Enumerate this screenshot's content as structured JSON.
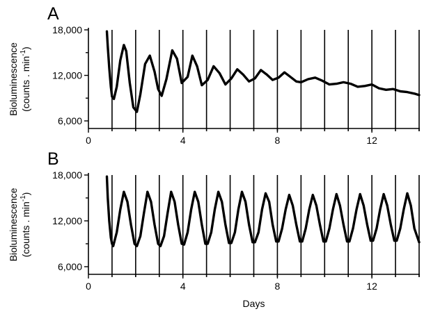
{
  "chart_data": [
    {
      "type": "line",
      "panel_label": "A",
      "ylabel": "Bioluminescence",
      "ylabel_units": "(counts . min",
      "ylabel_units_sup": "-1",
      "ylabel_units_close": ")",
      "xlabel": "",
      "xlim": [
        0,
        14
      ],
      "ylim": [
        5000,
        18000
      ],
      "x_ticks": [
        0,
        4,
        8,
        12
      ],
      "x_tick_labels": [
        "0",
        "4",
        "8",
        "12"
      ],
      "x_minor_ticks": [
        2,
        6,
        10,
        14
      ],
      "y_ticks": [
        6000,
        12000,
        18000
      ],
      "y_tick_labels": [
        "6,000",
        "12,000",
        "18,000"
      ],
      "y_minor_ticks": [
        9000,
        15000
      ],
      "day_markers": [
        1,
        2,
        3,
        4,
        5,
        6,
        7,
        8,
        9,
        10,
        11,
        12,
        13,
        14
      ],
      "series": [
        {
          "x": [
            0.78,
            0.82,
            0.88,
            0.95,
            1.0,
            1.08,
            1.2,
            1.35,
            1.5,
            1.6,
            1.75,
            1.9,
            2.05,
            2.2,
            2.4,
            2.6,
            2.8,
            2.95,
            3.1,
            3.3,
            3.55,
            3.75,
            3.95,
            4.2,
            4.4,
            4.6,
            4.8,
            5.05,
            5.3,
            5.55,
            5.8,
            6.05,
            6.3,
            6.55,
            6.8,
            7.05,
            7.3,
            7.55,
            7.8,
            8.05,
            8.3,
            8.55,
            8.8,
            9.0,
            9.3,
            9.6,
            9.9,
            10.2,
            10.5,
            10.8,
            11.1,
            11.4,
            11.7,
            12.0,
            12.3,
            12.6,
            12.9,
            13.2,
            13.5,
            13.8,
            14.0
          ],
          "y": [
            17800,
            15800,
            13000,
            10500,
            9200,
            8900,
            10500,
            14000,
            16000,
            15200,
            11000,
            7800,
            7200,
            9500,
            13500,
            14600,
            12500,
            10200,
            9300,
            11500,
            15300,
            14200,
            11000,
            11800,
            14600,
            13200,
            10700,
            11400,
            13200,
            12300,
            10800,
            11600,
            12800,
            12100,
            11200,
            11600,
            12700,
            12100,
            11400,
            11700,
            12400,
            11800,
            11200,
            11100,
            11500,
            11700,
            11300,
            10800,
            10900,
            11100,
            10900,
            10500,
            10600,
            10800,
            10300,
            10100,
            10200,
            9900,
            9800,
            9600,
            9400
          ]
        }
      ]
    },
    {
      "type": "line",
      "panel_label": "B",
      "ylabel": "Bioluminescence",
      "ylabel_units": "(counts . min",
      "ylabel_units_sup": "-1",
      "ylabel_units_close": ")",
      "xlabel": "Days",
      "xlim": [
        0,
        14
      ],
      "ylim": [
        5000,
        18000
      ],
      "x_ticks": [
        0,
        4,
        8,
        12
      ],
      "x_tick_labels": [
        "0",
        "4",
        "8",
        "12"
      ],
      "x_minor_ticks": [
        2,
        6,
        10,
        14
      ],
      "y_ticks": [
        6000,
        12000,
        18000
      ],
      "y_tick_labels": [
        "6,000",
        "12,000",
        "18,000"
      ],
      "y_minor_ticks": [
        9000,
        15000
      ],
      "day_markers": [
        1,
        2,
        3,
        4,
        5,
        6,
        7,
        8,
        9,
        10,
        11,
        12,
        13,
        14
      ],
      "series": [
        {
          "x": [
            0.78,
            0.82,
            0.88,
            0.95,
            1.0,
            1.05,
            1.2,
            1.35,
            1.5,
            1.65,
            1.8,
            1.95,
            2.05,
            2.2,
            2.35,
            2.5,
            2.65,
            2.8,
            2.95,
            3.05,
            3.2,
            3.35,
            3.5,
            3.65,
            3.8,
            3.95,
            4.05,
            4.2,
            4.35,
            4.5,
            4.65,
            4.8,
            4.95,
            5.05,
            5.2,
            5.35,
            5.5,
            5.65,
            5.8,
            5.95,
            6.05,
            6.2,
            6.35,
            6.5,
            6.65,
            6.8,
            6.95,
            7.05,
            7.2,
            7.35,
            7.5,
            7.65,
            7.8,
            7.95,
            8.05,
            8.2,
            8.35,
            8.5,
            8.65,
            8.8,
            8.95,
            9.05,
            9.2,
            9.35,
            9.5,
            9.65,
            9.8,
            9.95,
            10.05,
            10.2,
            10.35,
            10.5,
            10.65,
            10.8,
            10.95,
            11.05,
            11.2,
            11.35,
            11.5,
            11.65,
            11.8,
            11.95,
            12.05,
            12.2,
            12.35,
            12.5,
            12.65,
            12.8,
            12.95,
            13.05,
            13.2,
            13.35,
            13.5,
            13.65,
            13.8,
            14.0
          ],
          "y": [
            17800,
            15000,
            12000,
            9800,
            9000,
            8700,
            10500,
            13500,
            15800,
            14500,
            11500,
            9000,
            8700,
            10000,
            13000,
            15800,
            14500,
            11500,
            9000,
            8700,
            10000,
            13000,
            15800,
            14500,
            11500,
            9000,
            8900,
            10500,
            13500,
            15800,
            14500,
            11500,
            9000,
            9000,
            10500,
            13500,
            15800,
            14500,
            11500,
            9100,
            9100,
            10500,
            13500,
            15800,
            14500,
            11500,
            9200,
            9200,
            10500,
            13500,
            15600,
            14500,
            11500,
            9300,
            9300,
            11000,
            13500,
            15400,
            14000,
            11500,
            9300,
            9300,
            11000,
            13500,
            15400,
            14000,
            11500,
            9300,
            9300,
            11000,
            13500,
            15500,
            14000,
            11500,
            9300,
            9300,
            11000,
            13500,
            15500,
            14000,
            11500,
            9400,
            9400,
            11000,
            13500,
            15500,
            14000,
            11500,
            9400,
            9400,
            11000,
            13500,
            15600,
            14000,
            11000,
            9200
          ]
        }
      ]
    }
  ]
}
